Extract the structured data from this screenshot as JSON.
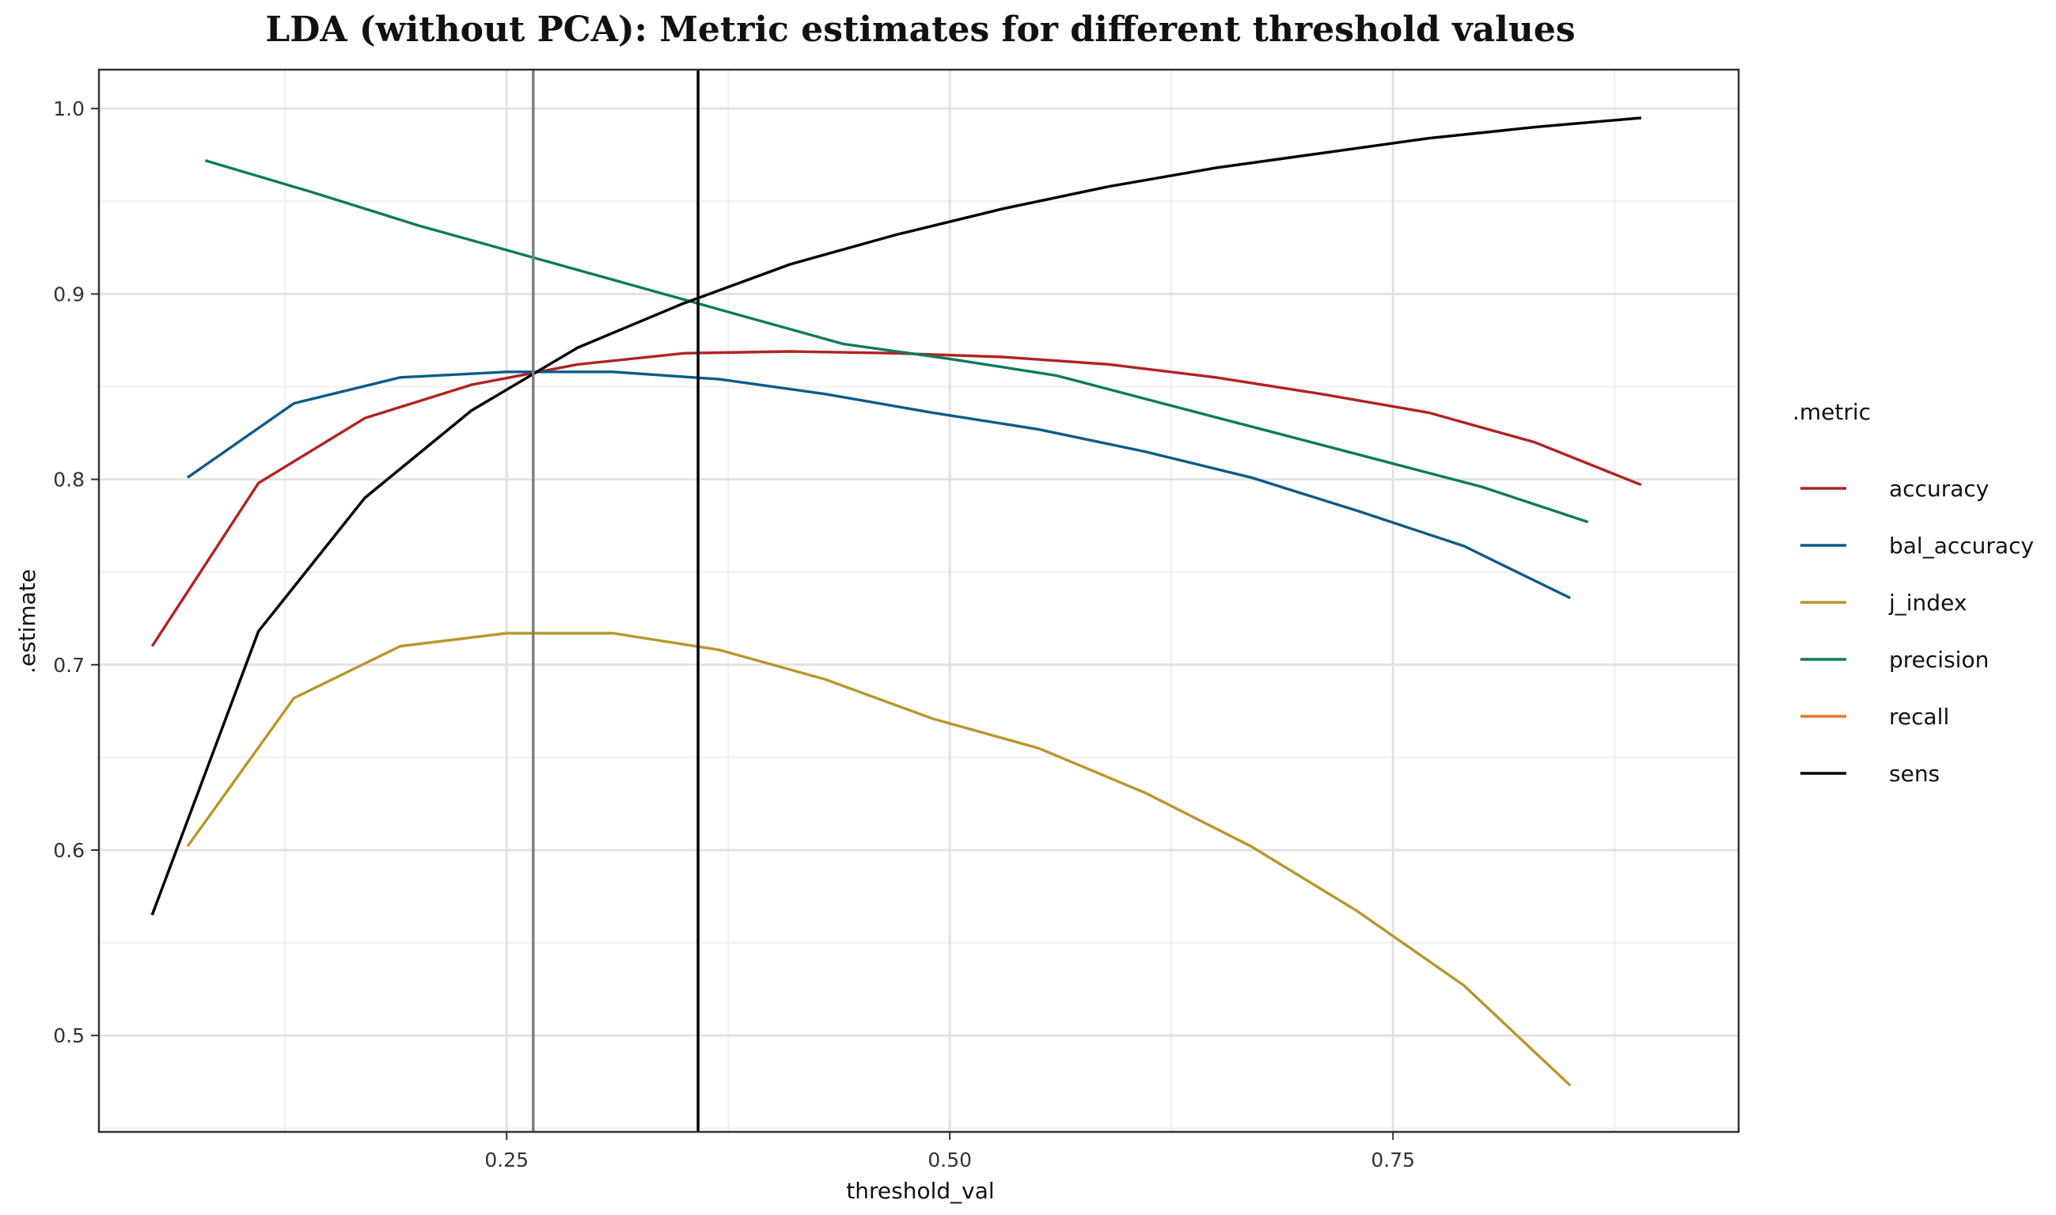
{
  "chart_data": {
    "type": "line",
    "title": "LDA (without PCA): Metric estimates for different threshold values",
    "xlabel": "threshold_val",
    "ylabel": ".estimate",
    "xlim": [
      0.02,
      0.945
    ],
    "ylim": [
      0.448,
      1.021
    ],
    "x_ticks": [
      0.25,
      0.5,
      0.75
    ],
    "x_tick_labels": [
      "0.25",
      "0.50",
      "0.75"
    ],
    "y_ticks": [
      0.5,
      0.6,
      0.7,
      0.8,
      0.9,
      1.0
    ],
    "y_tick_labels": [
      "0.5",
      "0.6",
      "0.7",
      "0.8",
      "0.9",
      "1.0"
    ],
    "grid": true,
    "legend": {
      "title": ".metric",
      "position": "right"
    },
    "vlines": [
      {
        "x": 0.265,
        "color": "#7f7f7f"
      },
      {
        "x": 0.358,
        "color": "#000000"
      }
    ],
    "series": [
      {
        "name": "accuracy",
        "color": "#b22222",
        "points": [
          [
            0.05,
            0.71
          ],
          [
            0.11,
            0.798
          ],
          [
            0.17,
            0.833
          ],
          [
            0.23,
            0.851
          ],
          [
            0.29,
            0.862
          ],
          [
            0.35,
            0.868
          ],
          [
            0.41,
            0.869
          ],
          [
            0.47,
            0.868
          ],
          [
            0.53,
            0.866
          ],
          [
            0.59,
            0.862
          ],
          [
            0.65,
            0.855
          ],
          [
            0.71,
            0.846
          ],
          [
            0.77,
            0.836
          ],
          [
            0.83,
            0.82
          ],
          [
            0.89,
            0.797
          ]
        ]
      },
      {
        "name": "bal_accuracy",
        "color": "#0e5a8a",
        "points": [
          [
            0.07,
            0.801
          ],
          [
            0.13,
            0.841
          ],
          [
            0.19,
            0.855
          ],
          [
            0.25,
            0.858
          ],
          [
            0.31,
            0.858
          ],
          [
            0.37,
            0.854
          ],
          [
            0.43,
            0.846
          ],
          [
            0.49,
            0.836
          ],
          [
            0.55,
            0.827
          ],
          [
            0.61,
            0.815
          ],
          [
            0.67,
            0.801
          ],
          [
            0.73,
            0.783
          ],
          [
            0.79,
            0.764
          ],
          [
            0.85,
            0.736
          ]
        ]
      },
      {
        "name": "j_index",
        "color": "#b8962e",
        "points": [
          [
            0.07,
            0.602
          ],
          [
            0.13,
            0.682
          ],
          [
            0.19,
            0.71
          ],
          [
            0.25,
            0.717
          ],
          [
            0.31,
            0.717
          ],
          [
            0.37,
            0.708
          ],
          [
            0.43,
            0.692
          ],
          [
            0.49,
            0.671
          ],
          [
            0.55,
            0.655
          ],
          [
            0.61,
            0.631
          ],
          [
            0.67,
            0.602
          ],
          [
            0.73,
            0.567
          ],
          [
            0.79,
            0.527
          ],
          [
            0.85,
            0.473
          ]
        ]
      },
      {
        "name": "precision",
        "color": "#0f7a5a",
        "points": [
          [
            0.08,
            0.972
          ],
          [
            0.14,
            0.955
          ],
          [
            0.2,
            0.937
          ],
          [
            0.26,
            0.921
          ],
          [
            0.32,
            0.905
          ],
          [
            0.38,
            0.889
          ],
          [
            0.44,
            0.873
          ],
          [
            0.5,
            0.865
          ],
          [
            0.56,
            0.856
          ],
          [
            0.62,
            0.841
          ],
          [
            0.68,
            0.826
          ],
          [
            0.74,
            0.811
          ],
          [
            0.8,
            0.796
          ],
          [
            0.86,
            0.777
          ]
        ]
      },
      {
        "name": "recall",
        "color": "#e07b28",
        "points": [
          [
            0.05,
            0.565
          ],
          [
            0.11,
            0.718
          ],
          [
            0.17,
            0.79
          ],
          [
            0.23,
            0.837
          ],
          [
            0.29,
            0.871
          ],
          [
            0.35,
            0.895
          ],
          [
            0.41,
            0.916
          ],
          [
            0.47,
            0.932
          ],
          [
            0.53,
            0.946
          ],
          [
            0.59,
            0.958
          ],
          [
            0.65,
            0.968
          ],
          [
            0.71,
            0.976
          ],
          [
            0.77,
            0.984
          ],
          [
            0.83,
            0.99
          ],
          [
            0.89,
            0.995
          ]
        ]
      },
      {
        "name": "sens",
        "color": "#000000",
        "points": [
          [
            0.05,
            0.565
          ],
          [
            0.11,
            0.718
          ],
          [
            0.17,
            0.79
          ],
          [
            0.23,
            0.837
          ],
          [
            0.29,
            0.871
          ],
          [
            0.35,
            0.895
          ],
          [
            0.41,
            0.916
          ],
          [
            0.47,
            0.932
          ],
          [
            0.53,
            0.946
          ],
          [
            0.59,
            0.958
          ],
          [
            0.65,
            0.968
          ],
          [
            0.71,
            0.976
          ],
          [
            0.77,
            0.984
          ],
          [
            0.83,
            0.99
          ],
          [
            0.89,
            0.995
          ]
        ]
      }
    ]
  }
}
